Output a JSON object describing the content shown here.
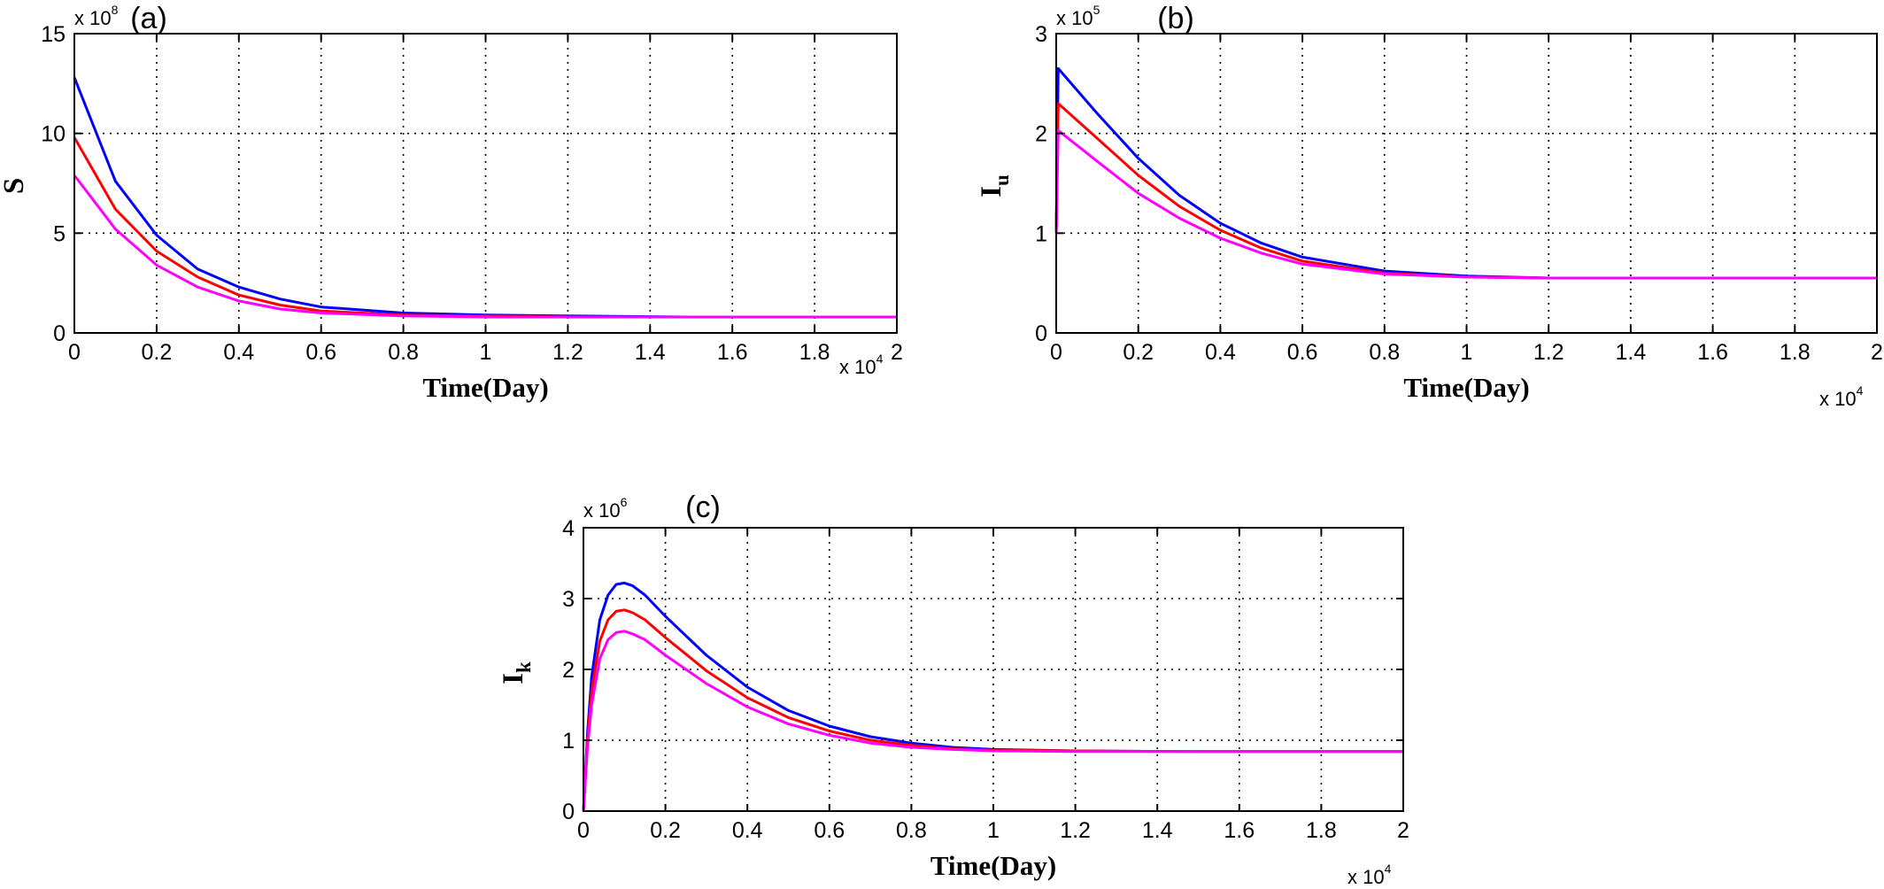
{
  "chart_data": [
    {
      "type": "line",
      "panel_label": "(a)",
      "xlabel": "Time(Day)",
      "ylabel": "S",
      "ylabel_sub": "",
      "x_multiplier": "x 10",
      "x_multiplier_exp": "4",
      "y_multiplier": "x 10",
      "y_multiplier_exp": "8",
      "xlim": [
        0,
        2
      ],
      "ylim": [
        0,
        15
      ],
      "xticks": [
        "0",
        "0.2",
        "0.4",
        "0.6",
        "0.8",
        "1",
        "1.2",
        "1.4",
        "1.6",
        "1.8",
        "2"
      ],
      "yticks": [
        "0",
        "5",
        "10",
        "15"
      ],
      "grid": true,
      "series": [
        {
          "color": "#0000ff",
          "x": [
            0,
            0.1,
            0.2,
            0.3,
            0.4,
            0.5,
            0.6,
            0.8,
            1.0,
            1.2,
            1.5,
            2.0
          ],
          "y": [
            12.8,
            7.6,
            4.9,
            3.2,
            2.3,
            1.7,
            1.3,
            1.0,
            0.9,
            0.85,
            0.8,
            0.8
          ]
        },
        {
          "color": "#ff0000",
          "x": [
            0,
            0.1,
            0.2,
            0.3,
            0.4,
            0.5,
            0.6,
            0.8,
            1.0,
            1.2,
            1.5,
            2.0
          ],
          "y": [
            9.8,
            6.2,
            4.1,
            2.8,
            1.9,
            1.4,
            1.1,
            0.9,
            0.85,
            0.8,
            0.8,
            0.8
          ]
        },
        {
          "color": "#ff00ff",
          "x": [
            0,
            0.1,
            0.2,
            0.3,
            0.4,
            0.5,
            0.6,
            0.8,
            1.0,
            1.2,
            1.5,
            2.0
          ],
          "y": [
            7.9,
            5.2,
            3.4,
            2.3,
            1.6,
            1.2,
            1.0,
            0.85,
            0.8,
            0.8,
            0.8,
            0.8
          ]
        }
      ]
    },
    {
      "type": "line",
      "panel_label": "(b)",
      "xlabel": "Time(Day)",
      "ylabel": "I",
      "ylabel_sub": "u",
      "x_multiplier": "x 10",
      "x_multiplier_exp": "4",
      "y_multiplier": "x 10",
      "y_multiplier_exp": "5",
      "xlim": [
        0,
        2
      ],
      "ylim": [
        0,
        3
      ],
      "xticks": [
        "0",
        "0.2",
        "0.4",
        "0.6",
        "0.8",
        "1",
        "1.2",
        "1.4",
        "1.6",
        "1.8",
        "2"
      ],
      "yticks": [
        "0",
        "1",
        "2",
        "3"
      ],
      "grid": true,
      "series": [
        {
          "color": "#0000ff",
          "x": [
            0,
            0.005,
            0.1,
            0.2,
            0.3,
            0.4,
            0.5,
            0.6,
            0.8,
            1.0,
            1.2,
            1.5,
            2.0
          ],
          "y": [
            1.0,
            2.65,
            2.2,
            1.75,
            1.38,
            1.1,
            0.9,
            0.76,
            0.62,
            0.57,
            0.55,
            0.55,
            0.55
          ]
        },
        {
          "color": "#ff0000",
          "x": [
            0,
            0.005,
            0.1,
            0.2,
            0.3,
            0.4,
            0.5,
            0.6,
            0.8,
            1.0,
            1.2,
            1.5,
            2.0
          ],
          "y": [
            1.0,
            2.3,
            1.95,
            1.58,
            1.27,
            1.03,
            0.85,
            0.72,
            0.6,
            0.56,
            0.55,
            0.55,
            0.55
          ]
        },
        {
          "color": "#ff00ff",
          "x": [
            0,
            0.005,
            0.1,
            0.2,
            0.3,
            0.4,
            0.5,
            0.6,
            0.8,
            1.0,
            1.2,
            1.5,
            2.0
          ],
          "y": [
            1.0,
            2.03,
            1.72,
            1.4,
            1.15,
            0.95,
            0.8,
            0.69,
            0.59,
            0.56,
            0.55,
            0.55,
            0.55
          ]
        }
      ]
    },
    {
      "type": "line",
      "panel_label": "(c)",
      "xlabel": "Time(Day)",
      "ylabel": "I",
      "ylabel_sub": "k",
      "x_multiplier": "x 10",
      "x_multiplier_exp": "4",
      "y_multiplier": "x 10",
      "y_multiplier_exp": "6",
      "xlim": [
        0,
        2
      ],
      "ylim": [
        0,
        4
      ],
      "xticks": [
        "0",
        "0.2",
        "0.4",
        "0.6",
        "0.8",
        "1",
        "1.2",
        "1.4",
        "1.6",
        "1.8",
        "2"
      ],
      "yticks": [
        "0",
        "1",
        "2",
        "3",
        "4"
      ],
      "grid": true,
      "series": [
        {
          "color": "#0000ff",
          "x": [
            0,
            0.01,
            0.02,
            0.04,
            0.06,
            0.08,
            0.1,
            0.12,
            0.15,
            0.2,
            0.3,
            0.4,
            0.5,
            0.6,
            0.7,
            0.8,
            0.9,
            1.0,
            1.2,
            1.5,
            2.0
          ],
          "y": [
            0,
            1.1,
            1.9,
            2.7,
            3.05,
            3.2,
            3.22,
            3.18,
            3.05,
            2.75,
            2.2,
            1.75,
            1.42,
            1.2,
            1.05,
            0.96,
            0.9,
            0.87,
            0.85,
            0.84,
            0.84
          ]
        },
        {
          "color": "#ff0000",
          "x": [
            0,
            0.01,
            0.02,
            0.04,
            0.06,
            0.08,
            0.1,
            0.12,
            0.15,
            0.2,
            0.3,
            0.4,
            0.5,
            0.6,
            0.7,
            0.8,
            0.9,
            1.0,
            1.2,
            1.5,
            2.0
          ],
          "y": [
            0,
            1.0,
            1.7,
            2.4,
            2.7,
            2.82,
            2.84,
            2.8,
            2.7,
            2.45,
            1.98,
            1.6,
            1.32,
            1.13,
            1.0,
            0.93,
            0.88,
            0.86,
            0.85,
            0.84,
            0.84
          ]
        },
        {
          "color": "#ff00ff",
          "x": [
            0,
            0.01,
            0.02,
            0.04,
            0.06,
            0.08,
            0.1,
            0.12,
            0.15,
            0.2,
            0.3,
            0.4,
            0.5,
            0.6,
            0.7,
            0.8,
            0.9,
            1.0,
            1.2,
            1.5,
            2.0
          ],
          "y": [
            0,
            0.9,
            1.5,
            2.15,
            2.42,
            2.52,
            2.54,
            2.5,
            2.42,
            2.2,
            1.8,
            1.47,
            1.23,
            1.07,
            0.96,
            0.9,
            0.87,
            0.85,
            0.84,
            0.84,
            0.84
          ]
        }
      ]
    }
  ]
}
